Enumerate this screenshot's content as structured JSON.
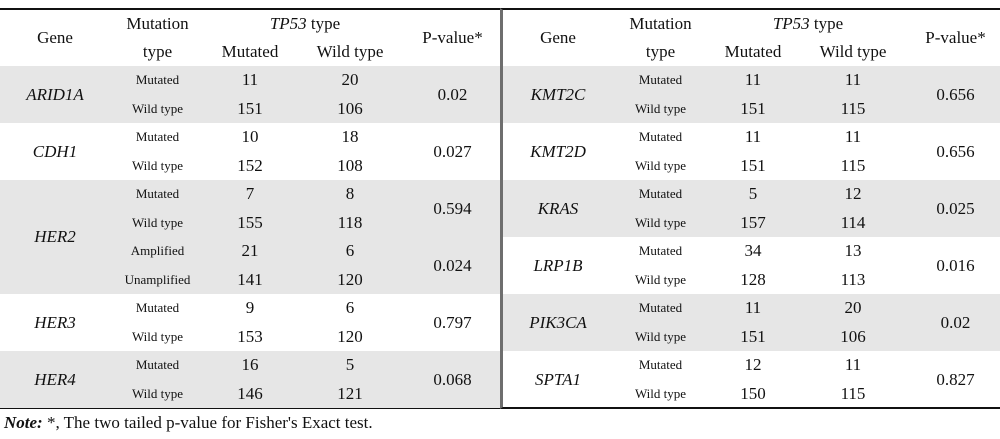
{
  "headers": {
    "gene": "Gene",
    "mutation_type_line1": "Mutation",
    "mutation_type_line2": "type",
    "tp53_italic": "TP53",
    "tp53_suffix": " type",
    "mutated": "Mutated",
    "wild_type": "Wild type",
    "pvalue": "P-value*"
  },
  "left": [
    {
      "gene": "ARID1A",
      "shade": true,
      "rows": [
        {
          "type": "Mutated",
          "mut": "11",
          "wt": "20"
        },
        {
          "type": "Wild type",
          "mut": "151",
          "wt": "106"
        }
      ],
      "pgroups": [
        {
          "p": "0.02",
          "span": 2
        }
      ]
    },
    {
      "gene": "CDH1",
      "shade": false,
      "rows": [
        {
          "type": "Mutated",
          "mut": "10",
          "wt": "18"
        },
        {
          "type": "Wild type",
          "mut": "152",
          "wt": "108"
        }
      ],
      "pgroups": [
        {
          "p": "0.027",
          "span": 2
        }
      ]
    },
    {
      "gene": "HER2",
      "shade": true,
      "rows": [
        {
          "type": "Mutated",
          "mut": "7",
          "wt": "8"
        },
        {
          "type": "Wild type",
          "mut": "155",
          "wt": "118"
        },
        {
          "type": "Amplified",
          "mut": "21",
          "wt": "6"
        },
        {
          "type": "Unamplified",
          "mut": "141",
          "wt": "120"
        }
      ],
      "pgroups": [
        {
          "p": "0.594",
          "span": 2
        },
        {
          "p": "0.024",
          "span": 2
        }
      ]
    },
    {
      "gene": "HER3",
      "shade": false,
      "rows": [
        {
          "type": "Mutated",
          "mut": "9",
          "wt": "6"
        },
        {
          "type": "Wild type",
          "mut": "153",
          "wt": "120"
        }
      ],
      "pgroups": [
        {
          "p": "0.797",
          "span": 2
        }
      ]
    },
    {
      "gene": "HER4",
      "shade": true,
      "rows": [
        {
          "type": "Mutated",
          "mut": "16",
          "wt": "5"
        },
        {
          "type": "Wild type",
          "mut": "146",
          "wt": "121"
        }
      ],
      "pgroups": [
        {
          "p": "0.068",
          "span": 2
        }
      ]
    }
  ],
  "right": [
    {
      "gene": "KMT2C",
      "shade": true,
      "rows": [
        {
          "type": "Mutated",
          "mut": "11",
          "wt": "11"
        },
        {
          "type": "Wild type",
          "mut": "151",
          "wt": "115"
        }
      ],
      "pgroups": [
        {
          "p": "0.656",
          "span": 2
        }
      ]
    },
    {
      "gene": "KMT2D",
      "shade": false,
      "rows": [
        {
          "type": "Mutated",
          "mut": "11",
          "wt": "11"
        },
        {
          "type": "Wild type",
          "mut": "151",
          "wt": "115"
        }
      ],
      "pgroups": [
        {
          "p": "0.656",
          "span": 2
        }
      ]
    },
    {
      "gene": "KRAS",
      "shade": true,
      "rows": [
        {
          "type": "Mutated",
          "mut": "5",
          "wt": "12"
        },
        {
          "type": "Wild type",
          "mut": "157",
          "wt": "114"
        }
      ],
      "pgroups": [
        {
          "p": "0.025",
          "span": 2
        }
      ]
    },
    {
      "gene": "LRP1B",
      "shade": false,
      "rows": [
        {
          "type": "Mutated",
          "mut": "34",
          "wt": "13"
        },
        {
          "type": "Wild type",
          "mut": "128",
          "wt": "113"
        }
      ],
      "pgroups": [
        {
          "p": "0.016",
          "span": 2
        }
      ]
    },
    {
      "gene": "PIK3CA",
      "shade": true,
      "rows": [
        {
          "type": "Mutated",
          "mut": "11",
          "wt": "20"
        },
        {
          "type": "Wild type",
          "mut": "151",
          "wt": "106"
        }
      ],
      "pgroups": [
        {
          "p": "0.02",
          "span": 2
        }
      ]
    },
    {
      "gene": "SPTA1",
      "shade": false,
      "rows": [
        {
          "type": "Mutated",
          "mut": "12",
          "wt": "11"
        },
        {
          "type": "Wild type",
          "mut": "150",
          "wt": "115"
        }
      ],
      "pgroups": [
        {
          "p": "0.827",
          "span": 2
        }
      ]
    }
  ],
  "note": {
    "label": "Note:",
    "text": " *, The two tailed p-value for Fisher's Exact test."
  }
}
